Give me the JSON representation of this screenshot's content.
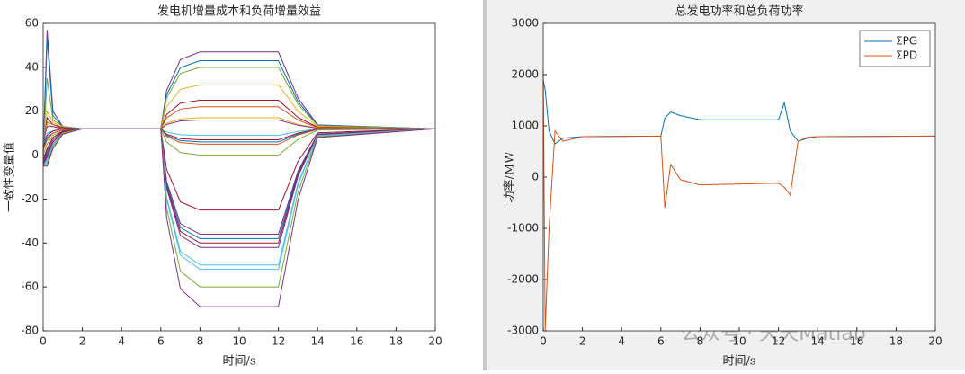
{
  "chart_data": [
    {
      "type": "line",
      "title": "发电机增量成本和负荷增量效益",
      "xlabel": "时间/s",
      "ylabel": "一致性变量值",
      "x": [
        0,
        0.2,
        0.5,
        1,
        2,
        6,
        6.3,
        7,
        8,
        12,
        13,
        14,
        20
      ],
      "xlim": [
        0,
        20
      ],
      "xticks": [
        0,
        2,
        4,
        6,
        8,
        10,
        12,
        14,
        16,
        18,
        20
      ],
      "ylim": [
        -80,
        60
      ],
      "yticks": [
        -80,
        -60,
        -40,
        -20,
        0,
        20,
        40,
        60
      ],
      "series": [
        {
          "color": "#7E2F8E",
          "values": [
            2,
            57,
            20,
            13,
            12,
            12,
            29.5,
            43.5,
            47,
            47,
            26,
            13.8,
            12
          ]
        },
        {
          "color": "#0072BD",
          "values": [
            0,
            53,
            18,
            13,
            12,
            12,
            27.5,
            39.9,
            43,
            43,
            24.4,
            13.6,
            12
          ]
        },
        {
          "color": "#77AC30",
          "values": [
            1,
            35,
            16,
            13,
            12,
            12,
            26,
            37.2,
            40,
            40,
            23.2,
            13.4,
            12
          ]
        },
        {
          "color": "#EDB120",
          "values": [
            3,
            20,
            15,
            12.5,
            12,
            12,
            22,
            30,
            32,
            32,
            20,
            13,
            12
          ]
        },
        {
          "color": "#A2142F",
          "values": [
            4,
            17,
            14,
            12.5,
            12,
            12,
            18.5,
            23.7,
            25,
            25,
            17.2,
            12.7,
            12
          ]
        },
        {
          "color": "#D95319",
          "values": [
            5,
            15,
            14,
            12,
            12,
            12,
            17,
            21,
            22,
            22,
            16,
            12.5,
            12
          ]
        },
        {
          "color": "#EDB120",
          "values": [
            6,
            14,
            13,
            12,
            12,
            12,
            14.5,
            16.5,
            17,
            17,
            14,
            12.3,
            12
          ]
        },
        {
          "color": "#7E2F8E",
          "values": [
            6,
            13,
            13,
            12,
            12,
            12,
            14,
            15.6,
            16,
            16,
            13.6,
            12.2,
            12
          ]
        },
        {
          "color": "#4DBEEE",
          "values": [
            5,
            10,
            11,
            12,
            12,
            12,
            10.5,
            9.3,
            9,
            9,
            10.8,
            11.9,
            12
          ]
        },
        {
          "color": "#A2142F",
          "values": [
            4,
            9,
            11,
            12,
            12,
            12,
            9.5,
            7.5,
            7,
            7,
            10,
            11.8,
            12
          ]
        },
        {
          "color": "#0072BD",
          "values": [
            3,
            8,
            10,
            11.5,
            12,
            12,
            9,
            6.6,
            6,
            6,
            9.6,
            11.7,
            12
          ]
        },
        {
          "color": "#D95319",
          "values": [
            2,
            7,
            10,
            11.5,
            12,
            12,
            8.5,
            5.7,
            5,
            5,
            9.2,
            11.7,
            12
          ]
        },
        {
          "color": "#77AC30",
          "values": [
            0,
            5,
            9,
            11,
            12,
            12,
            6,
            1.2,
            0,
            0,
            7.2,
            11.4,
            12
          ]
        },
        {
          "color": "#A2142F",
          "values": [
            -2,
            3,
            8,
            11,
            12,
            12,
            -6.5,
            -21.3,
            -25,
            -25,
            -2.8,
            10.2,
            12
          ]
        },
        {
          "color": "#7E2F8E",
          "values": [
            -3,
            2,
            7,
            11,
            12,
            12,
            -12,
            -31.2,
            -36,
            -36,
            -7.2,
            9.6,
            12
          ]
        },
        {
          "color": "#0072BD",
          "values": [
            -4,
            1,
            6,
            10.5,
            12,
            12,
            -13,
            -33,
            -38,
            -38,
            -8,
            9.5,
            12
          ]
        },
        {
          "color": "#A2142F",
          "values": [
            -4,
            0,
            6,
            10.5,
            12,
            12,
            -14,
            -34.8,
            -40,
            -40,
            -8.8,
            9.4,
            12
          ]
        },
        {
          "color": "#7E2F8E",
          "values": [
            -5,
            -1,
            5,
            10,
            12,
            12,
            -15,
            -36.6,
            -42,
            -42,
            -9.6,
            9.3,
            12
          ]
        },
        {
          "color": "#4DBEEE",
          "values": [
            -5,
            -2,
            5,
            10,
            12,
            12,
            -19,
            -43.8,
            -50,
            -50,
            -12.8,
            8.9,
            12
          ]
        },
        {
          "color": "#4DBEEE",
          "values": [
            -5,
            -3,
            4,
            10,
            12,
            12,
            -20,
            -45.6,
            -52,
            -52,
            -13.6,
            8.8,
            12
          ]
        },
        {
          "color": "#77AC30",
          "values": [
            -5,
            -4,
            4,
            10,
            12,
            12,
            -24,
            -52.8,
            -60,
            -60,
            -16.8,
            8.4,
            12
          ]
        },
        {
          "color": "#7E2F8E",
          "values": [
            -5,
            -5,
            3,
            9.5,
            12,
            12,
            -28.5,
            -60.9,
            -69,
            -69,
            -20.4,
            8,
            12
          ]
        }
      ]
    },
    {
      "type": "line",
      "title": "总发电功率和总负荷功率",
      "xlabel": "时间/s",
      "ylabel": "功率/MW",
      "x": [
        0,
        0.1,
        0.3,
        0.6,
        1,
        2,
        6,
        6.2,
        6.5,
        7,
        8,
        12,
        12.3,
        12.6,
        13,
        13.5,
        14,
        20
      ],
      "xlim": [
        0,
        20
      ],
      "xticks": [
        0,
        2,
        4,
        6,
        8,
        10,
        12,
        14,
        16,
        18,
        20
      ],
      "ylim": [
        -3000,
        3000
      ],
      "yticks": [
        -3000,
        -2000,
        -1000,
        0,
        1000,
        2000,
        3000
      ],
      "legend": "upper-right",
      "series": [
        {
          "name": "ΣPG",
          "color": "#0072BD",
          "values": [
            1900,
            1700,
            900,
            650,
            760,
            790,
            800,
            1150,
            1270,
            1200,
            1120,
            1120,
            1450,
            900,
            700,
            760,
            790,
            800
          ]
        },
        {
          "name": "ΣPD",
          "color": "#D95319",
          "values": [
            2100,
            -3000,
            -1000,
            900,
            700,
            790,
            800,
            -600,
            250,
            -50,
            -150,
            -120,
            -200,
            -350,
            700,
            780,
            790,
            800
          ]
        }
      ]
    }
  ],
  "watermark": "公众号 · 天天Matlab"
}
